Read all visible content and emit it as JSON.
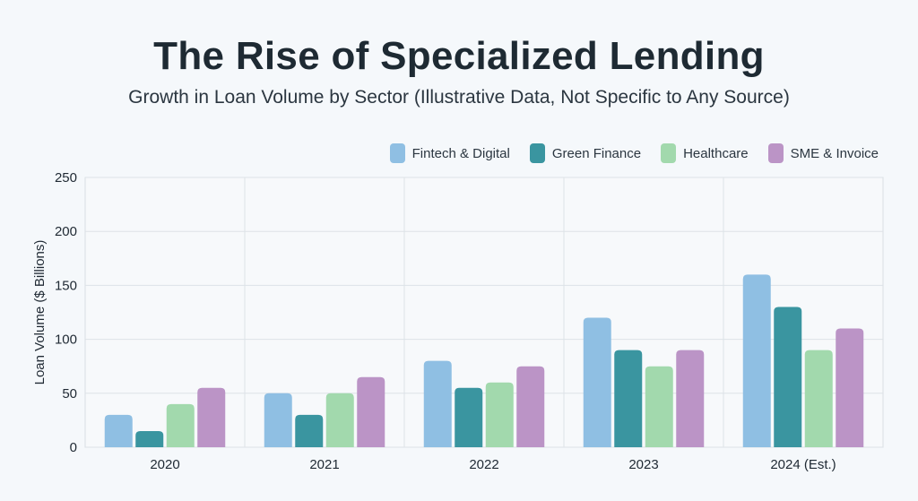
{
  "chart_data": {
    "type": "bar",
    "title": "The Rise of Specialized Lending",
    "subtitle": "Growth in Loan Volume by Sector (Illustrative Data, Not Specific to Any Source)",
    "xlabel": "",
    "ylabel": "Loan Volume ($ Billions)",
    "ylim": [
      0,
      250
    ],
    "yticks": [
      0,
      50,
      100,
      150,
      200,
      250
    ],
    "categories": [
      "2020",
      "2021",
      "2022",
      "2023",
      "2024 (Est.)"
    ],
    "series": [
      {
        "name": "Fintech & Digital",
        "color": "#8fbfe3",
        "values": [
          30,
          50,
          80,
          120,
          160
        ]
      },
      {
        "name": "Green Finance",
        "color": "#3a95a0",
        "values": [
          15,
          30,
          55,
          90,
          130
        ]
      },
      {
        "name": "Healthcare",
        "color": "#a2d9ad",
        "values": [
          40,
          50,
          60,
          75,
          90
        ]
      },
      {
        "name": "SME & Invoice",
        "color": "#bb94c6",
        "values": [
          55,
          65,
          75,
          90,
          110
        ]
      }
    ],
    "grid": true,
    "legend_position": "top-right"
  }
}
